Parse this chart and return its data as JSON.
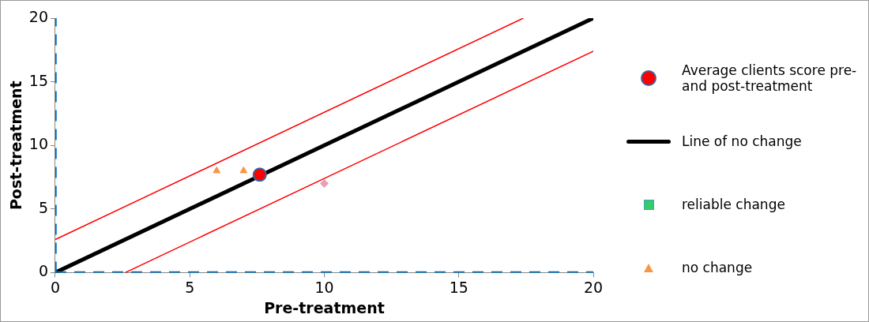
{
  "chart_data": {
    "type": "scatter",
    "xlabel": "Pre-treatment",
    "ylabel": "Post-treatment",
    "xlim": [
      0,
      20
    ],
    "ylim": [
      0,
      20
    ],
    "xticks": [
      0,
      5,
      10,
      15,
      20
    ],
    "yticks": [
      0,
      5,
      10,
      15,
      20
    ],
    "grid": false,
    "legend": "right",
    "series": [
      {
        "name": "Average clients score pre- and post-treatment",
        "marker": "circle",
        "color": "#ff0000",
        "x": [
          7.6
        ],
        "values": [
          7.7
        ]
      },
      {
        "name": "Line of no change",
        "type": "line",
        "marker": "none",
        "line_style": "solid",
        "color": "#000000",
        "x": [
          0,
          20
        ],
        "values": [
          0,
          20
        ]
      },
      {
        "name": "reliable change",
        "marker": "square",
        "color": "#33cc66"
      },
      {
        "name": "no change",
        "marker": "triangle",
        "color": "#f79646",
        "x": [
          6,
          7
        ],
        "values": [
          8,
          8
        ]
      },
      {
        "marker": "diamond",
        "color": "#e8a0b4",
        "x": [
          10
        ],
        "values": [
          7
        ]
      },
      {
        "type": "line",
        "marker": "none",
        "line_style": "solid",
        "color": "#ff0000",
        "x": [
          0,
          17.4
        ],
        "values": [
          2.6,
          20
        ]
      },
      {
        "type": "line",
        "marker": "none",
        "line_style": "solid",
        "color": "#ff0000",
        "x": [
          2.6,
          20
        ],
        "values": [
          0,
          17.4
        ]
      },
      {
        "type": "line",
        "marker": "none",
        "line_style": "dashed",
        "color": "#0070c0",
        "x": [
          0,
          20
        ],
        "values": [
          0,
          0
        ]
      },
      {
        "type": "line",
        "marker": "none",
        "line_style": "dashed",
        "color": "#0070c0",
        "x": [
          0,
          0
        ],
        "values": [
          0,
          20
        ]
      }
    ]
  }
}
